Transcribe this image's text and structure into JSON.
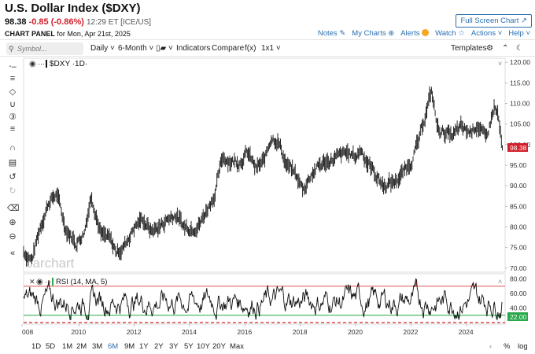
{
  "header": {
    "title": "U.S. Dollar Index ($DXY)",
    "price": "98.38",
    "change": "-0.85 (-0.86%)",
    "time": "12:29 ET [ICE/US]",
    "fullscreen_label": "Full Screen Chart",
    "panel_label": "CHART PANEL",
    "panel_date": "for Mon, Apr 21st, 2025",
    "links": {
      "notes": "Notes",
      "mycharts": "My Charts",
      "alerts": "Alerts",
      "watch": "Watch",
      "actions": "Actions",
      "help": "Help"
    }
  },
  "toolbar": {
    "symbol_placeholder": "Symbol...",
    "interval": "Daily",
    "range": "6-Month",
    "chart_type_icon": "bar-chart-icon",
    "indicators": "Indicators",
    "compare": "Compare",
    "fx": "f(x)",
    "layout": "1x1",
    "templates": "Templates"
  },
  "sidebar_icons": [
    "crosshair-icon",
    "draw-lines-icon",
    "shapes-icon",
    "patterns-icon",
    "numbering-icon",
    "fibonacci-icon",
    "magnet-icon",
    "lock-icon",
    "undo-icon",
    "redo-icon",
    "trash-icon",
    "zoom-in-icon",
    "zoom-out-icon",
    "collapse-icon"
  ],
  "price_pane": {
    "legend": "$DXY ·1D·",
    "watermark": "barchart",
    "axis_ticks": [
      "120.00",
      "115.00",
      "110.00",
      "105.00",
      "100.00",
      "95.00",
      "90.00",
      "85.00",
      "80.00",
      "75.00",
      "70.00"
    ],
    "last_price_label": "98.38",
    "last_price_color": "#d1202b"
  },
  "rsi_pane": {
    "legend": "RSI (14, MA, 5)",
    "axis_ticks": [
      "80.00",
      "60.00",
      "40.00"
    ],
    "last_label": "22.00",
    "upper_band": 70,
    "lower_band": 30,
    "band_upper_color": "#e05555",
    "band_lower_color": "#27a84a"
  },
  "x_axis": {
    "ticks": [
      "008",
      "2010",
      "2012",
      "2014",
      "2016",
      "2018",
      "2020",
      "2022",
      "2024"
    ]
  },
  "period_buttons": [
    "1D",
    "5D",
    "1M",
    "2M",
    "3M",
    "6M",
    "9M",
    "1Y",
    "2Y",
    "3Y",
    "5Y",
    "10Y",
    "20Y",
    "Max"
  ],
  "active_period": "6M",
  "scale_buttons": [
    "%",
    "log"
  ],
  "chart_data": {
    "type": "line",
    "series": [
      {
        "x": [
          2008.0,
          2008.3,
          2008.6,
          2008.9,
          2009.2,
          2009.5,
          2009.9,
          2010.2,
          2010.45,
          2010.8,
          2011.1,
          2011.35,
          2011.6,
          2012.0,
          2012.3,
          2012.6,
          2012.9,
          2013.2,
          2013.5,
          2013.8,
          2014.1,
          2014.4,
          2014.6,
          2014.9,
          2015.2,
          2015.5,
          2015.8,
          2016.1,
          2016.4,
          2016.7,
          2016.95,
          2017.2,
          2017.5,
          2017.8,
          2018.1,
          2018.4,
          2018.7,
          2019.0,
          2019.4,
          2019.7,
          2020.0,
          2020.2,
          2020.4,
          2020.7,
          2021.0,
          2021.4,
          2021.7,
          2022.0,
          2022.3,
          2022.5,
          2022.75,
          2022.95,
          2023.2,
          2023.5,
          2023.8,
          2024.1,
          2024.4,
          2024.7,
          2025.0,
          2025.15,
          2025.3
        ],
        "y": [
          74,
          72,
          80,
          86,
          88,
          80,
          76,
          79,
          88,
          78,
          77,
          74,
          75,
          80,
          82,
          79,
          80,
          82,
          83,
          80,
          80,
          81,
          84,
          88,
          97,
          96,
          96,
          98,
          94,
          96,
          102,
          101,
          95,
          93,
          89,
          93,
          95,
          96,
          97,
          98,
          97,
          99,
          96,
          93,
          90,
          91,
          93,
          96,
          101,
          107,
          113,
          104,
          103,
          102,
          104,
          103,
          105,
          101,
          109,
          107,
          98.38
        ]
      }
    ],
    "ylim": [
      69,
      121
    ],
    "xlim": [
      2008,
      2025.4
    ],
    "rsi": {
      "ylim": [
        20,
        85
      ],
      "upper_band": 70,
      "lower_band": 30,
      "last": 22
    }
  }
}
